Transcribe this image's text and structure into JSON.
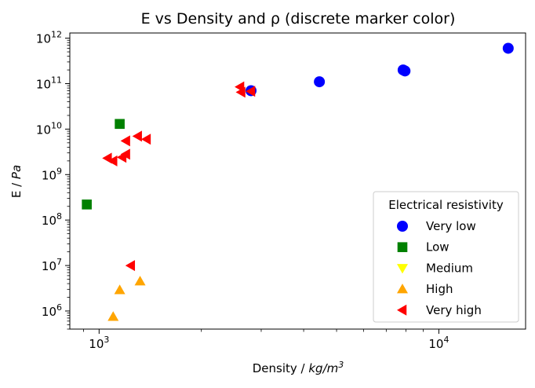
{
  "chart_data": {
    "type": "scatter",
    "title": "E vs Density and ρ (discrete marker color)",
    "xlabel": "Density / kg/m³",
    "ylabel": "E / Pa",
    "xscale": "log",
    "yscale": "log",
    "xlim": [
      820,
      18000
    ],
    "ylim": [
      400000,
      1300000000000
    ],
    "x_ticks": [
      {
        "value": 1000,
        "base": "10",
        "exp": "3"
      },
      {
        "value": 10000,
        "base": "10",
        "exp": "4"
      }
    ],
    "y_ticks": [
      {
        "value": 1000000,
        "base": "10",
        "exp": "6"
      },
      {
        "value": 10000000,
        "base": "10",
        "exp": "7"
      },
      {
        "value": 100000000,
        "base": "10",
        "exp": "8"
      },
      {
        "value": 1000000000,
        "base": "10",
        "exp": "9"
      },
      {
        "value": 10000000000,
        "base": "10",
        "exp": "10"
      },
      {
        "value": 100000000000,
        "base": "10",
        "exp": "11"
      },
      {
        "value": 1000000000000,
        "base": "10",
        "exp": "12"
      }
    ],
    "grid": false,
    "legend": {
      "title": "Electrical resistivity",
      "position": "lower-right"
    },
    "series": [
      {
        "name": "Very low",
        "color": "#0000ff",
        "marker": "circle",
        "points": [
          [
            2800,
            70000000000
          ],
          [
            4450,
            110000000000
          ],
          [
            7850,
            200000000000
          ],
          [
            7950,
            190000000000
          ],
          [
            16000,
            600000000000
          ]
        ]
      },
      {
        "name": "Low",
        "color": "#008000",
        "marker": "square",
        "points": [
          [
            920,
            220000000
          ],
          [
            1150,
            13000000000
          ]
        ]
      },
      {
        "name": "Medium",
        "color": "#ffff00",
        "marker": "triangle-down",
        "points": []
      },
      {
        "name": "High",
        "color": "#ffa500",
        "marker": "triangle-up",
        "points": [
          [
            1100,
            750000
          ],
          [
            1150,
            2900000
          ],
          [
            1320,
            4500000
          ]
        ]
      },
      {
        "name": "Very high",
        "color": "#ff0000",
        "marker": "triangle-left",
        "points": [
          [
            1060,
            2300000000
          ],
          [
            1100,
            2000000000
          ],
          [
            1170,
            2400000000
          ],
          [
            1200,
            2800000000
          ],
          [
            1200,
            5500000000
          ],
          [
            1300,
            7000000000
          ],
          [
            1380,
            6000000000
          ],
          [
            1240,
            10000000
          ],
          [
            2600,
            85000000000
          ],
          [
            2620,
            65000000000
          ],
          [
            2800,
            68000000000
          ]
        ]
      }
    ]
  }
}
